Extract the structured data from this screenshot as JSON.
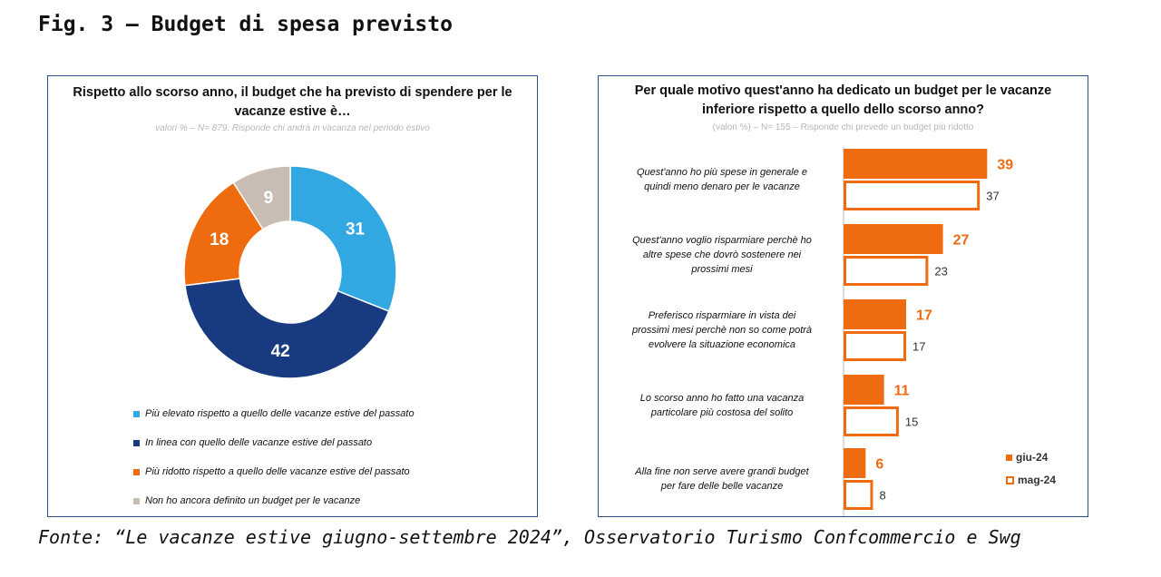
{
  "figure_title": "Fig. 3 – Budget di spesa previsto",
  "source": "Fonte: “Le vacanze estive giugno-settembre 2024”, Osservatorio Turismo Confcommercio e Swg",
  "colors": {
    "blue_light": "#32a8e3",
    "blue_dark": "#173a80",
    "orange": "#ee6b10",
    "grey": "#c8bcb3",
    "panel_border": "#2a4f8a"
  },
  "chart_data": [
    {
      "type": "pie",
      "variant": "donut",
      "title": "Rispetto allo scorso anno, il budget che ha previsto di spendere per le vacanze estive è…",
      "subtitle": "valori % – N= 879. Risponde chi andrà in vacanza nel periodo estivo",
      "slices": [
        {
          "label": "Più elevato rispetto a quello delle vacanze estive del passato",
          "value": 31,
          "color": "#32a8e3"
        },
        {
          "label": "In linea con quello delle vacanze estive del passato",
          "value": 42,
          "color": "#173a80"
        },
        {
          "label": "Più ridotto rispetto a quello delle vacanze estive del passato",
          "value": 18,
          "color": "#ee6b10"
        },
        {
          "label": "Non ho ancora definito un budget per le vacanze",
          "value": 9,
          "color": "#c8bcb3"
        }
      ],
      "legend_position": "bottom"
    },
    {
      "type": "bar",
      "orientation": "horizontal",
      "title": "Per quale motivo quest'anno ha dedicato un budget per le vacanze inferiore rispetto a quello dello scorso anno?",
      "subtitle": "(valori %) – N= 155 – Risponde chi prevede un budget più ridotto",
      "categories": [
        "Quest'anno ho più spese in generale e quindi meno denaro per le vacanze",
        "Quest'anno voglio risparmiare perchè ho altre spese che dovrò sostenere nei prossimi mesi",
        "Preferisco risparmiare in vista dei prossimi mesi perchè non so come potrà evolvere la situazione economica",
        "Lo scorso anno ho fatto una vacanza particolare più costosa del solito",
        "Alla fine non serve avere grandi budget per fare delle belle vacanze"
      ],
      "category_lines": [
        [
          "Quest'anno ho più spese in generale e",
          "quindi meno denaro per le vacanze"
        ],
        [
          "Quest'anno voglio risparmiare perchè ho",
          "altre spese che dovrò sostenere nei",
          "prossimi mesi"
        ],
        [
          "Preferisco risparmiare in vista dei",
          "prossimi mesi perchè non so come potrà",
          "evolvere la situazione economica"
        ],
        [
          "Lo scorso anno ho fatto una vacanza",
          "particolare più costosa del solito"
        ],
        [
          "Alla fine non serve avere grandi budget",
          "per fare delle belle vacanze"
        ]
      ],
      "series": [
        {
          "name": "giu-24",
          "values": [
            39,
            27,
            17,
            11,
            6
          ],
          "color": "#ee6b10",
          "style": "filled"
        },
        {
          "name": "mag-24",
          "values": [
            37,
            23,
            17,
            15,
            8
          ],
          "color": "#ee6b10",
          "style": "outline"
        }
      ],
      "xlim": [
        0,
        40
      ],
      "legend_position": "bottom-right"
    }
  ]
}
